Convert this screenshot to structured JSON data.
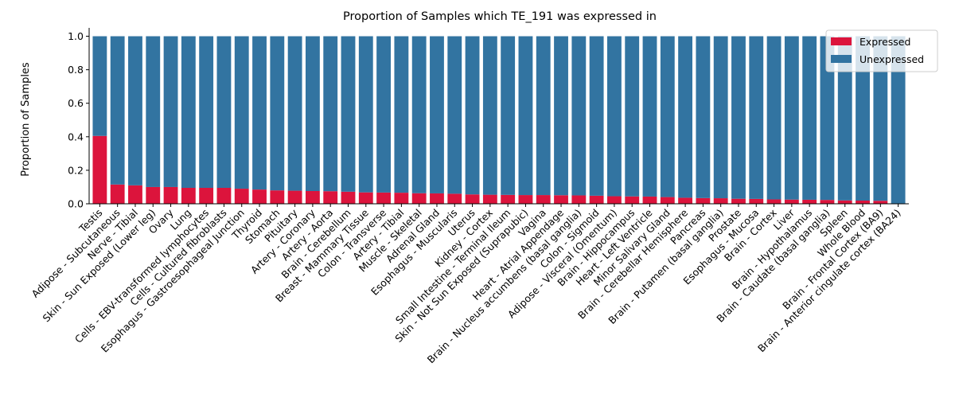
{
  "chart_data": {
    "type": "bar",
    "stacked": true,
    "title": "Proportion of Samples which TE_191 was expressed in",
    "xlabel": "",
    "ylabel": "Proportion of Samples",
    "ylim": [
      0,
      1.05
    ],
    "yticks": [
      "0.0",
      "0.2",
      "0.4",
      "0.6",
      "0.8",
      "1.0"
    ],
    "grid": false,
    "legend_position": "top-right",
    "categories": [
      "Testis",
      "Adipose - Subcutaneous",
      "Nerve - Tibial",
      "Skin - Sun Exposed (Lower leg)",
      "Ovary",
      "Lung",
      "Cells - EBV-transformed lymphocytes",
      "Cells - Cultured fibroblasts",
      "Esophagus - Gastroesophageal Junction",
      "Thyroid",
      "Stomach",
      "Pituitary",
      "Artery - Coronary",
      "Artery - Aorta",
      "Brain - Cerebellum",
      "Breast - Mammary Tissue",
      "Colon - Transverse",
      "Artery - Tibial",
      "Muscle - Skeletal",
      "Adrenal Gland",
      "Esophagus - Muscularis",
      "Uterus",
      "Kidney - Cortex",
      "Small Intestine - Terminal Ileum",
      "Skin - Not Sun Exposed (Suprapubic)",
      "Vagina",
      "Heart - Atrial Appendage",
      "Brain - Nucleus accumbens (basal ganglia)",
      "Colon - Sigmoid",
      "Adipose - Visceral (Omentum)",
      "Brain - Hippocampus",
      "Heart - Left Ventricle",
      "Minor Salivary Gland",
      "Brain - Cerebellar Hemisphere",
      "Pancreas",
      "Brain - Putamen (basal ganglia)",
      "Prostate",
      "Esophagus - Mucosa",
      "Brain - Cortex",
      "Liver",
      "Brain - Hypothalamus",
      "Brain - Caudate (basal ganglia)",
      "Spleen",
      "Whole Blood",
      "Brain - Frontal Cortex (BA9)",
      "Brain - Anterior cingulate cortex (BA24)"
    ],
    "series": [
      {
        "name": "Expressed",
        "color": "#dc143c",
        "values": [
          0.405,
          0.115,
          0.11,
          0.1,
          0.1,
          0.095,
          0.095,
          0.095,
          0.09,
          0.085,
          0.08,
          0.078,
          0.076,
          0.075,
          0.072,
          0.068,
          0.067,
          0.066,
          0.063,
          0.062,
          0.06,
          0.056,
          0.054,
          0.053,
          0.052,
          0.052,
          0.051,
          0.05,
          0.048,
          0.045,
          0.044,
          0.043,
          0.04,
          0.036,
          0.034,
          0.033,
          0.03,
          0.029,
          0.026,
          0.025,
          0.024,
          0.023,
          0.02,
          0.019,
          0.018,
          0.0
        ]
      },
      {
        "name": "Unexpressed",
        "color": "#3274a1",
        "values": [
          0.595,
          0.885,
          0.89,
          0.9,
          0.9,
          0.905,
          0.905,
          0.905,
          0.91,
          0.915,
          0.92,
          0.922,
          0.924,
          0.925,
          0.928,
          0.932,
          0.933,
          0.934,
          0.937,
          0.938,
          0.94,
          0.944,
          0.946,
          0.947,
          0.948,
          0.948,
          0.949,
          0.95,
          0.952,
          0.955,
          0.956,
          0.957,
          0.96,
          0.964,
          0.966,
          0.967,
          0.97,
          0.971,
          0.974,
          0.975,
          0.976,
          0.977,
          0.98,
          0.981,
          0.982,
          1.0
        ]
      }
    ]
  }
}
